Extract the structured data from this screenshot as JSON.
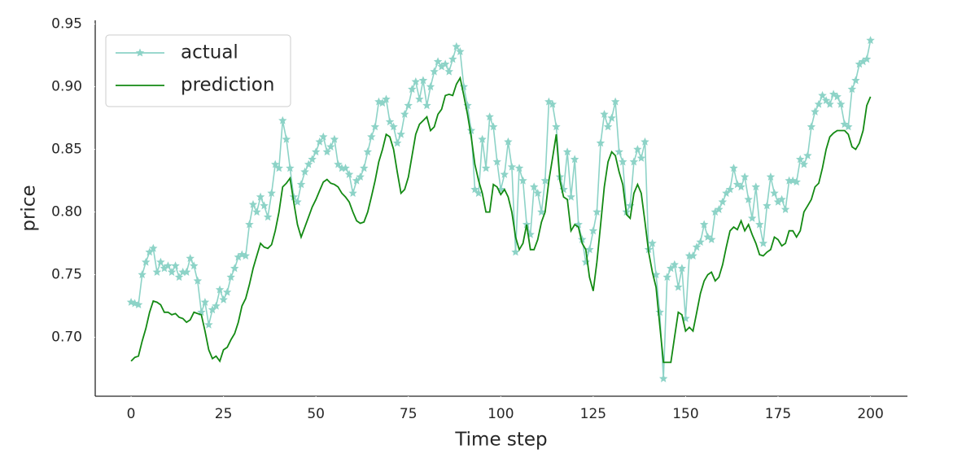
{
  "chart_data": {
    "type": "line",
    "xlabel": "Time step",
    "ylabel": "price",
    "x": [
      0,
      1,
      2,
      3,
      4,
      5,
      6,
      7,
      8,
      9,
      10,
      11,
      12,
      13,
      14,
      15,
      16,
      17,
      18,
      19,
      20,
      21,
      22,
      23,
      24,
      25,
      26,
      27,
      28,
      29,
      30,
      31,
      32,
      33,
      34,
      35,
      36,
      37,
      38,
      39,
      40,
      41,
      42,
      43,
      44,
      45,
      46,
      47,
      48,
      49,
      50,
      51,
      52,
      53,
      54,
      55,
      56,
      57,
      58,
      59,
      60,
      61,
      62,
      63,
      64,
      65,
      66,
      67,
      68,
      69,
      70,
      71,
      72,
      73,
      74,
      75,
      76,
      77,
      78,
      79,
      80,
      81,
      82,
      83,
      84,
      85,
      86,
      87,
      88,
      89,
      90,
      91,
      92,
      93,
      94,
      95,
      96,
      97,
      98,
      99,
      100,
      101,
      102,
      103,
      104,
      105,
      106,
      107,
      108,
      109,
      110,
      111,
      112,
      113,
      114,
      115,
      116,
      117,
      118,
      119,
      120,
      121,
      122,
      123,
      124,
      125,
      126,
      127,
      128,
      129,
      130,
      131,
      132,
      133,
      134,
      135,
      136,
      137,
      138,
      139,
      140,
      141,
      142,
      143,
      144,
      145,
      146,
      147,
      148,
      149,
      150,
      151,
      152,
      153,
      154,
      155,
      156,
      157,
      158,
      159,
      160,
      161,
      162,
      163,
      164,
      165,
      166,
      167,
      168,
      169,
      170,
      171,
      172,
      173,
      174,
      175,
      176,
      177,
      178,
      179,
      180,
      181,
      182,
      183,
      184,
      185,
      186,
      187,
      188,
      189,
      190,
      191,
      192,
      193,
      194,
      195,
      196,
      197,
      198,
      199,
      200
    ],
    "series": [
      {
        "name": "actual",
        "color": "#8dd3c7",
        "marker": "star",
        "values": [
          0.728,
          0.727,
          0.726,
          0.75,
          0.76,
          0.768,
          0.771,
          0.752,
          0.76,
          0.755,
          0.757,
          0.752,
          0.757,
          0.748,
          0.752,
          0.752,
          0.763,
          0.757,
          0.745,
          0.72,
          0.728,
          0.71,
          0.722,
          0.725,
          0.738,
          0.73,
          0.736,
          0.748,
          0.755,
          0.764,
          0.766,
          0.765,
          0.79,
          0.806,
          0.8,
          0.812,
          0.805,
          0.796,
          0.815,
          0.838,
          0.835,
          0.873,
          0.858,
          0.835,
          0.812,
          0.808,
          0.822,
          0.832,
          0.838,
          0.842,
          0.848,
          0.856,
          0.86,
          0.848,
          0.852,
          0.858,
          0.838,
          0.835,
          0.835,
          0.83,
          0.815,
          0.825,
          0.828,
          0.835,
          0.848,
          0.86,
          0.868,
          0.888,
          0.887,
          0.89,
          0.872,
          0.868,
          0.855,
          0.862,
          0.878,
          0.885,
          0.898,
          0.904,
          0.89,
          0.905,
          0.885,
          0.9,
          0.912,
          0.92,
          0.916,
          0.918,
          0.912,
          0.922,
          0.932,
          0.928,
          0.9,
          0.885,
          0.865,
          0.818,
          0.815,
          0.858,
          0.835,
          0.876,
          0.868,
          0.84,
          0.818,
          0.83,
          0.856,
          0.836,
          0.768,
          0.835,
          0.825,
          0.79,
          0.782,
          0.82,
          0.815,
          0.8,
          0.825,
          0.888,
          0.886,
          0.868,
          0.828,
          0.818,
          0.848,
          0.812,
          0.842,
          0.79,
          0.778,
          0.76,
          0.77,
          0.785,
          0.8,
          0.855,
          0.878,
          0.868,
          0.875,
          0.888,
          0.848,
          0.84,
          0.8,
          0.805,
          0.84,
          0.85,
          0.843,
          0.856,
          0.77,
          0.775,
          0.75,
          0.72,
          0.667,
          0.748,
          0.755,
          0.758,
          0.74,
          0.755,
          0.715,
          0.765,
          0.765,
          0.772,
          0.776,
          0.79,
          0.78,
          0.778,
          0.8,
          0.802,
          0.808,
          0.815,
          0.818,
          0.835,
          0.822,
          0.82,
          0.828,
          0.81,
          0.795,
          0.82,
          0.79,
          0.775,
          0.805,
          0.828,
          0.815,
          0.808,
          0.81,
          0.802,
          0.825,
          0.825,
          0.824,
          0.842,
          0.838,
          0.845,
          0.868,
          0.88,
          0.886,
          0.893,
          0.889,
          0.886,
          0.894,
          0.892,
          0.886,
          0.87,
          0.868,
          0.898,
          0.905,
          0.918,
          0.92,
          0.922,
          0.937
        ]
      },
      {
        "name": "prediction",
        "color": "#138a13",
        "values": [
          0.681,
          0.684,
          0.685,
          0.697,
          0.707,
          0.72,
          0.729,
          0.728,
          0.726,
          0.72,
          0.72,
          0.718,
          0.719,
          0.716,
          0.715,
          0.712,
          0.714,
          0.72,
          0.719,
          0.718,
          0.705,
          0.69,
          0.683,
          0.685,
          0.681,
          0.69,
          0.692,
          0.698,
          0.703,
          0.712,
          0.725,
          0.731,
          0.742,
          0.755,
          0.765,
          0.775,
          0.772,
          0.771,
          0.774,
          0.785,
          0.8,
          0.82,
          0.823,
          0.827,
          0.808,
          0.79,
          0.78,
          0.788,
          0.796,
          0.804,
          0.81,
          0.817,
          0.824,
          0.826,
          0.823,
          0.822,
          0.82,
          0.815,
          0.812,
          0.808,
          0.8,
          0.793,
          0.791,
          0.792,
          0.8,
          0.812,
          0.825,
          0.84,
          0.85,
          0.862,
          0.86,
          0.85,
          0.832,
          0.815,
          0.818,
          0.828,
          0.845,
          0.862,
          0.87,
          0.873,
          0.876,
          0.865,
          0.868,
          0.878,
          0.882,
          0.893,
          0.894,
          0.893,
          0.902,
          0.907,
          0.893,
          0.878,
          0.86,
          0.838,
          0.825,
          0.815,
          0.8,
          0.8,
          0.822,
          0.82,
          0.814,
          0.818,
          0.812,
          0.8,
          0.78,
          0.77,
          0.775,
          0.79,
          0.77,
          0.77,
          0.778,
          0.792,
          0.8,
          0.825,
          0.843,
          0.862,
          0.825,
          0.812,
          0.81,
          0.785,
          0.79,
          0.788,
          0.775,
          0.77,
          0.748,
          0.737,
          0.76,
          0.79,
          0.82,
          0.84,
          0.848,
          0.845,
          0.832,
          0.822,
          0.798,
          0.795,
          0.815,
          0.822,
          0.815,
          0.792,
          0.768,
          0.752,
          0.74,
          0.71,
          0.68,
          0.68,
          0.68,
          0.7,
          0.72,
          0.718,
          0.705,
          0.708,
          0.705,
          0.72,
          0.735,
          0.745,
          0.75,
          0.752,
          0.745,
          0.748,
          0.758,
          0.772,
          0.785,
          0.788,
          0.786,
          0.793,
          0.785,
          0.79,
          0.782,
          0.775,
          0.766,
          0.765,
          0.768,
          0.77,
          0.78,
          0.778,
          0.773,
          0.775,
          0.785,
          0.785,
          0.78,
          0.785,
          0.8,
          0.805,
          0.81,
          0.82,
          0.823,
          0.835,
          0.85,
          0.86,
          0.863,
          0.865,
          0.865,
          0.865,
          0.862,
          0.852,
          0.85,
          0.855,
          0.865,
          0.885,
          0.892
        ]
      }
    ],
    "xlim": [
      -9.7,
      210
    ],
    "ylim": [
      0.653,
      0.953
    ],
    "xticks": [
      0,
      25,
      50,
      75,
      100,
      125,
      150,
      175,
      200
    ],
    "yticks": [
      {
        "value": 0.7,
        "label": "0.70"
      },
      0.75,
      {
        "value": 0.8,
        "label": "0.80"
      },
      0.85,
      {
        "value": 0.9,
        "label": "0.90"
      },
      0.95
    ],
    "grid": false,
    "legend": "upper left"
  }
}
